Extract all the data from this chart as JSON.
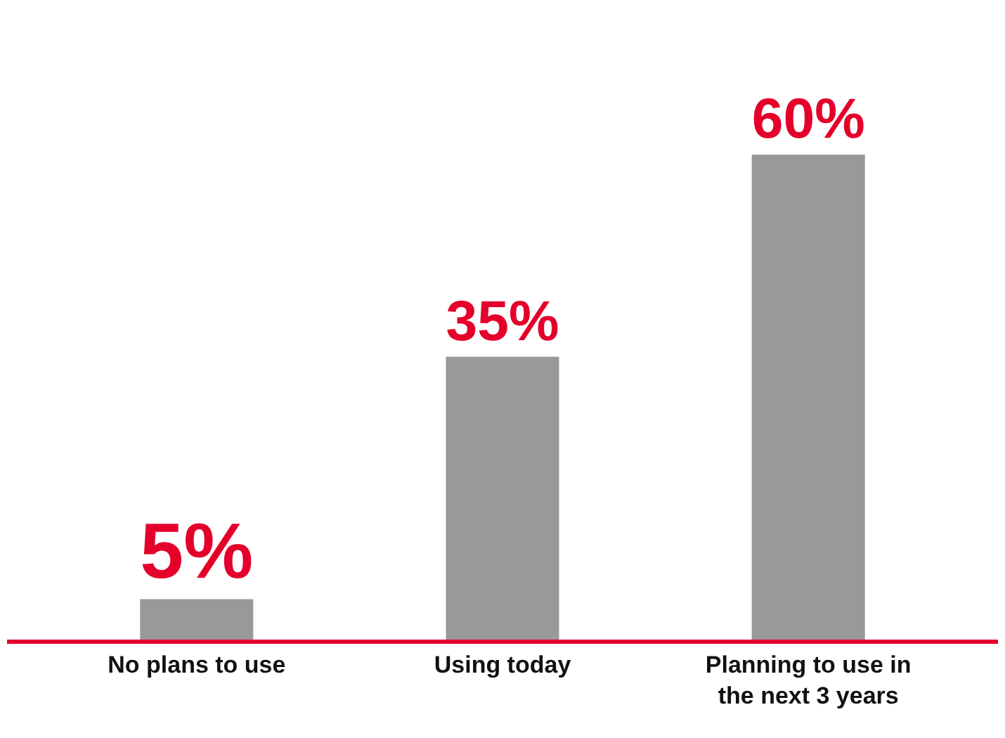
{
  "chart_data": {
    "type": "bar",
    "categories": [
      "No plans to use",
      "Using today",
      "Planning to use in the next 3 years"
    ],
    "values": [
      5,
      35,
      60
    ],
    "value_labels": [
      "5%",
      "35%",
      "60%"
    ],
    "color": "#98999b",
    "tick_labels": "x"
  }
}
